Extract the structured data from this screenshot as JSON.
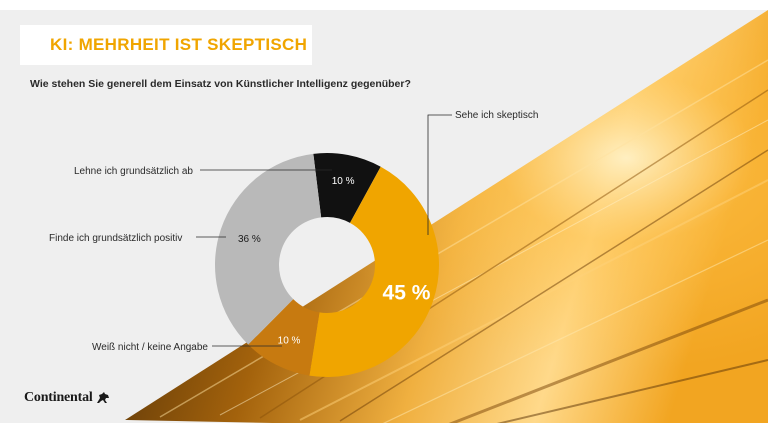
{
  "header": {
    "title": "KI: MEHRHEIT IST SKEPTISCH"
  },
  "question": "Wie stehen Sie generell dem Einsatz von Künstlicher Intelligenz gegenüber?",
  "brand": {
    "logo_text": "Continental",
    "accent_color": "#f0a500"
  },
  "chart_data": {
    "type": "donut",
    "title": "Wie stehen Sie generell dem Einsatz von Künstlicher Intelligenz gegenüber?",
    "slices": [
      {
        "label": "Lehne ich grundsätzlich ab",
        "value": 10,
        "value_label": "10 %",
        "color": "#111111",
        "label_color": "#ffffff"
      },
      {
        "label": "Sehe ich skeptisch",
        "value": 45,
        "value_label": "45 %",
        "color": "#f0a500",
        "label_color": "#ffffff"
      },
      {
        "label": "Weiß nicht / keine Angabe",
        "value": 10,
        "value_label": "10 %",
        "color": "#c77a10",
        "label_color": "#ffffff"
      },
      {
        "label": "Finde ich grundsätzlich positiv",
        "value": 36,
        "value_label": "36 %",
        "color": "#b9b9b9",
        "label_color": "#1a1a1a"
      }
    ]
  }
}
